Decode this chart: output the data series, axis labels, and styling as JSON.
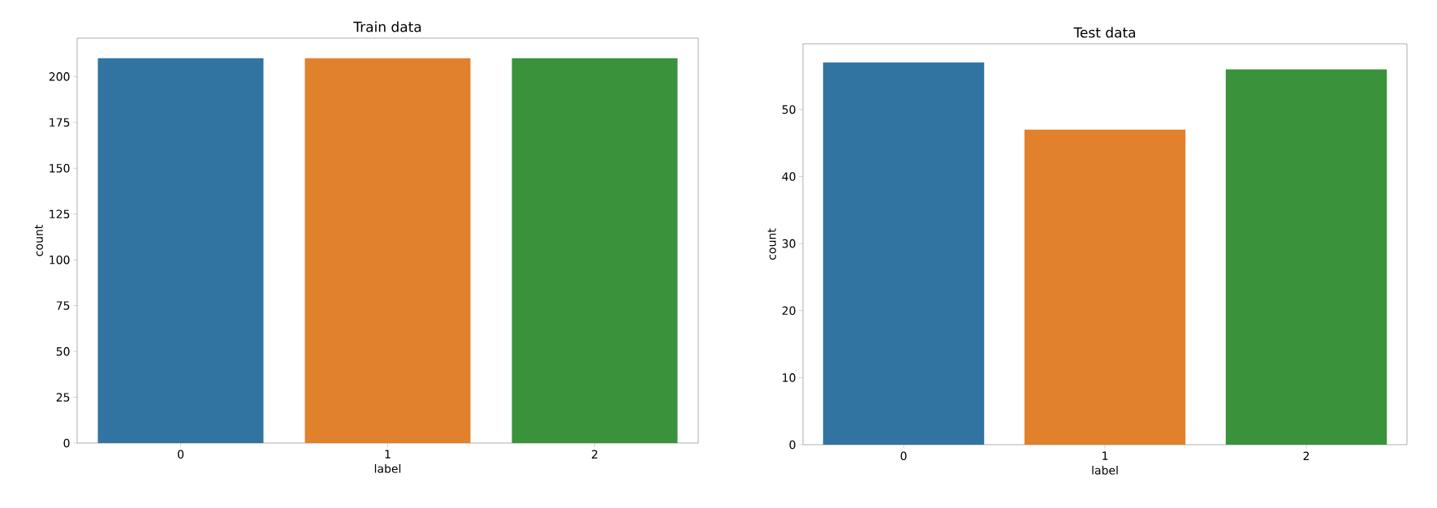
{
  "chart_data": [
    {
      "type": "bar",
      "title": "Train data",
      "xlabel": "label",
      "ylabel": "count",
      "categories": [
        "0",
        "1",
        "2"
      ],
      "values": [
        210,
        210,
        210
      ],
      "colors": [
        "#3274a1",
        "#e1812c",
        "#3a923a"
      ],
      "ylim": [
        0,
        221
      ],
      "yticks": [
        0,
        25,
        50,
        75,
        100,
        125,
        150,
        175,
        200
      ]
    },
    {
      "type": "bar",
      "title": "Test data",
      "xlabel": "label",
      "ylabel": "count",
      "categories": [
        "0",
        "1",
        "2"
      ],
      "values": [
        57,
        47,
        56
      ],
      "colors": [
        "#3274a1",
        "#e1812c",
        "#3a923a"
      ],
      "ylim": [
        0,
        59.8
      ],
      "yticks": [
        0,
        10,
        20,
        30,
        40,
        50
      ]
    }
  ]
}
